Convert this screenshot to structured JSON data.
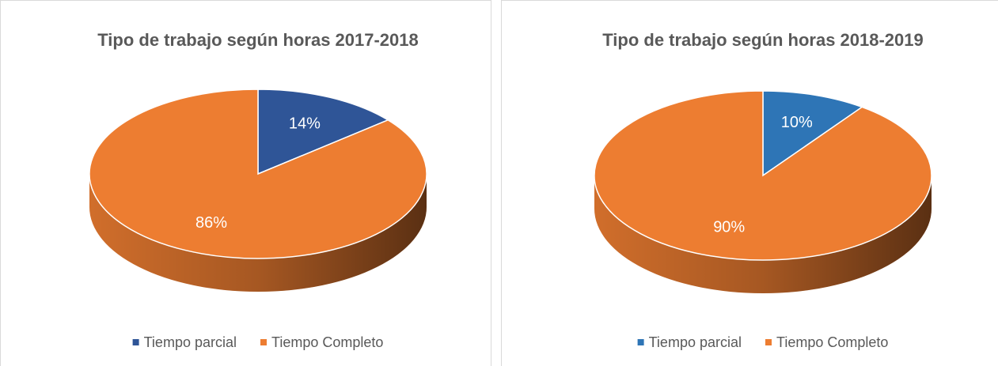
{
  "chart_data": [
    {
      "type": "pie",
      "title": "Tipo de trabajo según horas 2017-2018",
      "categories": [
        "Tiempo parcial",
        "Tiempo Completo"
      ],
      "values": [
        14,
        86
      ],
      "value_labels": [
        "14%",
        "86%"
      ],
      "colors": [
        "#2f5597",
        "#ed7d31"
      ]
    },
    {
      "type": "pie",
      "title": "Tipo de trabajo según horas 2018-2019",
      "categories": [
        "Tiempo parcial",
        "Tiempo Completo"
      ],
      "values": [
        10,
        90
      ],
      "value_labels": [
        "10%",
        "90%"
      ],
      "colors": [
        "#2e75b6",
        "#ed7d31"
      ]
    }
  ]
}
